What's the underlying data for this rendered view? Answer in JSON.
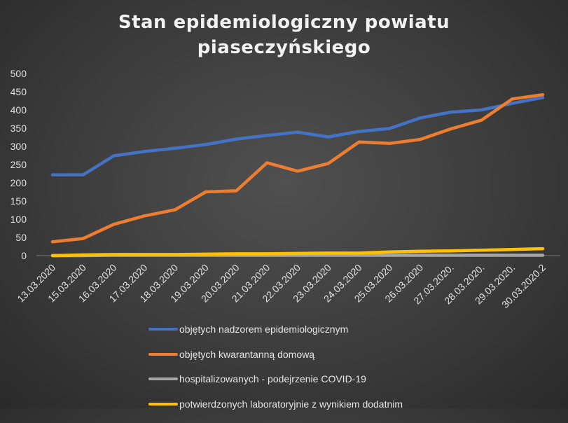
{
  "chart_data": {
    "type": "line",
    "title_lines": [
      "Stan epidemiologiczny powiatu",
      "piaseczyńskiego"
    ],
    "xlabel": "",
    "ylabel": "",
    "ylim": [
      0,
      500
    ],
    "y_ticks": [
      0,
      50,
      100,
      150,
      200,
      250,
      300,
      350,
      400,
      450,
      500
    ],
    "grid": false,
    "legend_position": "bottom",
    "categories": [
      "13.03.2020",
      "15.03.2020",
      "16.03.2020",
      "17.03.2020",
      "18.03.2020",
      "19.03.2020",
      "20.03.2020",
      "21.03.2020",
      "22.03.2020",
      "23.03.2020",
      "24.03.2020",
      "25.03.2020",
      "26.03.2020",
      "27.03.2020.",
      "28.03.2020.",
      "29.03.2020.",
      "30.03.2020.2"
    ],
    "series": [
      {
        "name": "objętych nadzorem epidemiologicznym",
        "color": "#4472C4",
        "values": [
          222,
          222,
          274,
          286,
          295,
          305,
          320,
          330,
          339,
          326,
          341,
          349,
          378,
          394,
          400,
          418,
          434
        ]
      },
      {
        "name": "objętych kwarantanną domową",
        "color": "#ED7D31",
        "values": [
          38,
          47,
          86,
          109,
          126,
          175,
          178,
          255,
          232,
          253,
          312,
          308,
          319,
          348,
          372,
          430,
          442
        ]
      },
      {
        "name": "hospitalizowanych - podejrzenie COVID-19",
        "color": "#A5A5A5",
        "values": [
          0,
          0,
          1,
          1,
          1,
          1,
          1,
          1,
          1,
          1,
          1,
          1,
          1,
          1,
          1,
          1,
          1
        ]
      },
      {
        "name": "potwierdzonych laboratoryjnie z wynikiem dodatnim",
        "color": "#FFC000",
        "values": [
          0,
          2,
          3,
          3,
          3,
          4,
          5,
          5,
          6,
          7,
          7,
          10,
          12,
          13,
          15,
          17,
          19
        ]
      }
    ]
  }
}
